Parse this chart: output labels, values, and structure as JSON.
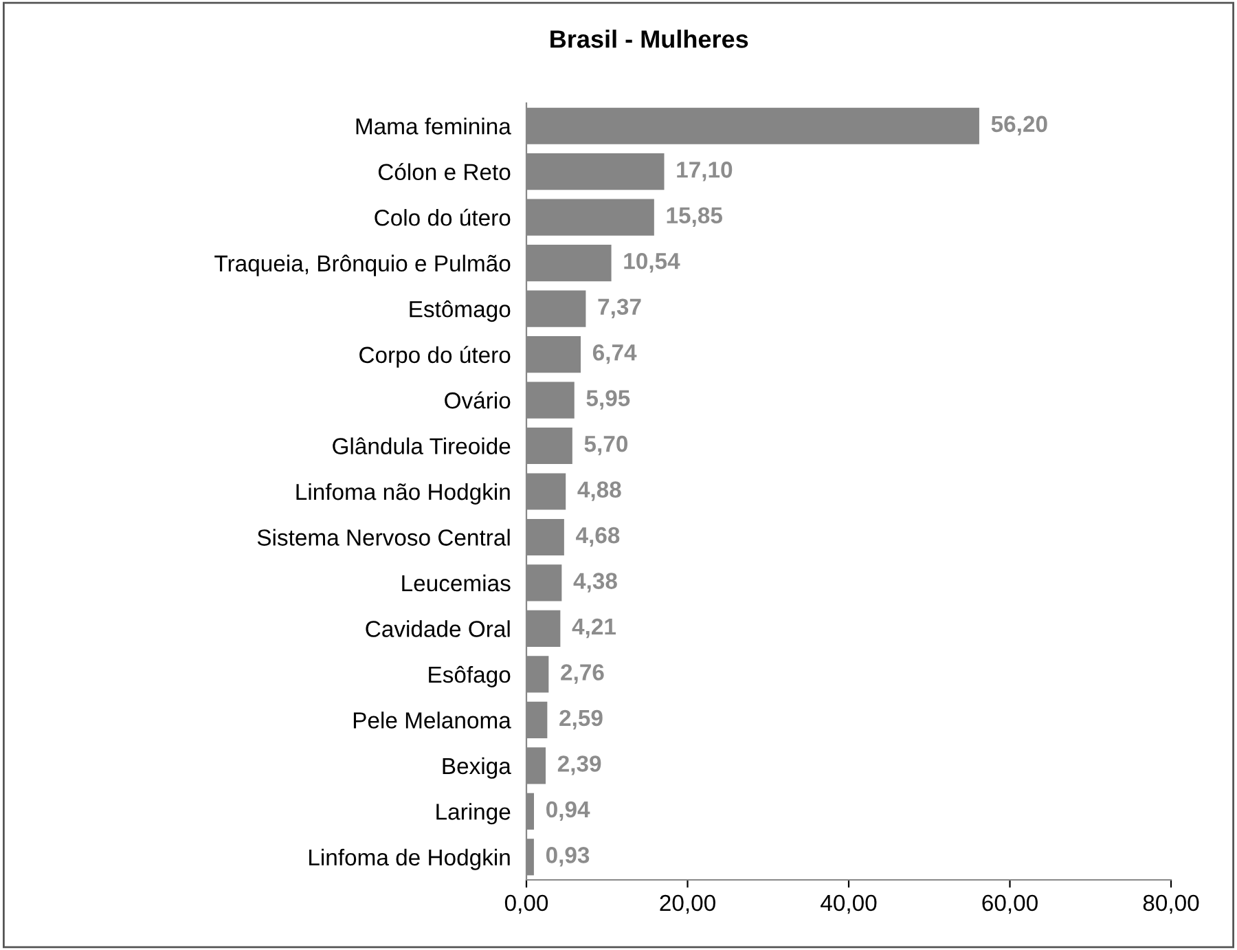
{
  "chart_data": {
    "type": "bar",
    "orientation": "horizontal",
    "title": "Brasil - Mulheres",
    "categories": [
      "Mama feminina",
      "Cólon e Reto",
      "Colo do útero",
      "Traqueia, Brônquio e Pulmão",
      "Estômago",
      "Corpo do útero",
      "Ovário",
      "Glândula Tireoide",
      "Linfoma não Hodgkin",
      "Sistema Nervoso Central",
      "Leucemias",
      "Cavidade Oral",
      "Esôfago",
      "Pele Melanoma",
      "Bexiga",
      "Laringe",
      "Linfoma de Hodgkin"
    ],
    "values": [
      56.2,
      17.1,
      15.85,
      10.54,
      7.37,
      6.74,
      5.95,
      5.7,
      4.88,
      4.68,
      4.38,
      4.21,
      2.76,
      2.59,
      2.39,
      0.94,
      0.93
    ],
    "value_labels": [
      "56,20",
      "17,10",
      "15,85",
      "10,54",
      "7,37",
      "6,74",
      "5,95",
      "5,70",
      "4,88",
      "4,68",
      "4,38",
      "4,21",
      "2,76",
      "2,59",
      "2,39",
      "0,94",
      "0,93"
    ],
    "color": "#858585",
    "xlim": [
      0,
      80
    ],
    "xticks": [
      {
        "value": 0,
        "label": "0,00"
      },
      {
        "value": 20,
        "label": "20,00"
      },
      {
        "value": 40,
        "label": "40,00"
      },
      {
        "value": 60,
        "label": "60,00"
      },
      {
        "value": 80,
        "label": "80,00"
      }
    ],
    "grid": false,
    "legend": false
  }
}
